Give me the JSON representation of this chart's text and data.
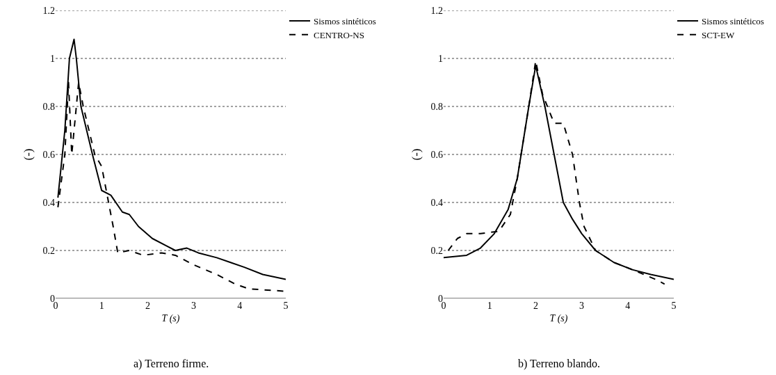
{
  "chart_data": [
    {
      "type": "line",
      "title": "a) Terreno firme.",
      "xlabel": "T (s)",
      "ylabel": "(-)",
      "xlim": [
        0,
        5
      ],
      "xticks": [
        0,
        1,
        2,
        3,
        4,
        5
      ],
      "ylim": [
        0,
        1.2
      ],
      "yticks": [
        0,
        0.2,
        0.4,
        0.6,
        0.8,
        1,
        1.2
      ],
      "grid": "y",
      "legend": "top right",
      "series": [
        {
          "name": "Sismos sintéticos",
          "color": "#000000",
          "line_style": "solid",
          "x": [
            0.05,
            0.2,
            0.3,
            0.4,
            0.45,
            0.55,
            0.8,
            1.0,
            1.2,
            1.45,
            1.6,
            1.8,
            2.1,
            2.4,
            2.6,
            2.85,
            3.1,
            3.5,
            3.8,
            4.1,
            4.5,
            5
          ],
          "values": [
            0.42,
            0.7,
            1.0,
            1.08,
            1.0,
            0.8,
            0.6,
            0.45,
            0.43,
            0.36,
            0.35,
            0.3,
            0.25,
            0.22,
            0.2,
            0.21,
            0.19,
            0.17,
            0.15,
            0.13,
            0.1,
            0.08
          ]
        },
        {
          "name": "CENTRO-NS",
          "color": "#000000",
          "line_style": "dashed",
          "x": [
            0.05,
            0.2,
            0.28,
            0.35,
            0.5,
            0.6,
            0.85,
            1.0,
            1.25,
            1.35,
            1.6,
            1.9,
            2.3,
            2.6,
            3.0,
            3.5,
            3.9,
            4.2,
            5
          ],
          "values": [
            0.38,
            0.6,
            0.9,
            0.6,
            0.9,
            0.8,
            0.6,
            0.55,
            0.3,
            0.19,
            0.2,
            0.18,
            0.19,
            0.18,
            0.14,
            0.1,
            0.06,
            0.04,
            0.03
          ]
        }
      ]
    },
    {
      "type": "line",
      "title": "b) Terreno blando.",
      "xlabel": "T (s)",
      "ylabel": "(-)",
      "xlim": [
        0,
        5
      ],
      "xticks": [
        0,
        1,
        2,
        3,
        4,
        5
      ],
      "ylim": [
        0,
        1.2
      ],
      "yticks": [
        0,
        0.2,
        0.4,
        0.6,
        0.8,
        1,
        1.2
      ],
      "grid": "y",
      "legend": "top right",
      "series": [
        {
          "name": "Sismos sintéticos",
          "color": "#000000",
          "line_style": "solid",
          "x": [
            0,
            0.5,
            0.8,
            1.1,
            1.4,
            1.6,
            1.85,
            2.0,
            2.2,
            2.4,
            2.6,
            2.8,
            3.0,
            3.3,
            3.7,
            4.1,
            4.5,
            5
          ],
          "values": [
            0.17,
            0.18,
            0.21,
            0.27,
            0.37,
            0.5,
            0.8,
            0.97,
            0.8,
            0.6,
            0.4,
            0.33,
            0.27,
            0.2,
            0.15,
            0.12,
            0.1,
            0.08
          ]
        },
        {
          "name": "SCT-EW",
          "color": "#000000",
          "line_style": "dashed",
          "x": [
            0.1,
            0.3,
            0.5,
            0.8,
            1.2,
            1.45,
            1.6,
            1.85,
            2.0,
            2.15,
            2.4,
            2.6,
            2.8,
            2.95,
            3.05,
            3.3,
            3.7,
            4.1,
            4.6,
            4.8
          ],
          "values": [
            0.2,
            0.25,
            0.27,
            0.27,
            0.28,
            0.35,
            0.5,
            0.8,
            0.99,
            0.85,
            0.73,
            0.73,
            0.6,
            0.4,
            0.3,
            0.2,
            0.15,
            0.12,
            0.08,
            0.06
          ]
        }
      ]
    }
  ]
}
